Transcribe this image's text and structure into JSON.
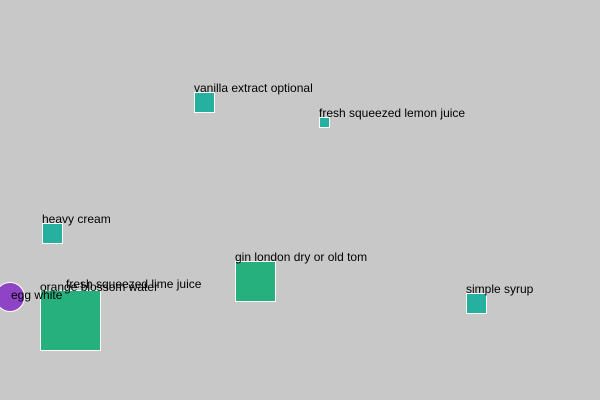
{
  "nodes": [
    {
      "id": "vanilla",
      "label": "vanilla extract optional",
      "shape": "square",
      "color": "#26b0a0"
    },
    {
      "id": "lemon",
      "label": "fresh squeezed lemon juice",
      "shape": "square",
      "color": "#26b0a0"
    },
    {
      "id": "cream",
      "label": "heavy cream",
      "shape": "square",
      "color": "#26b0a0"
    },
    {
      "id": "gin",
      "label": "gin london dry or old tom",
      "shape": "square",
      "color": "#26b07e"
    },
    {
      "id": "syrup",
      "label": "simple syrup",
      "shape": "square",
      "color": "#26b0a0"
    },
    {
      "id": "egg",
      "label": "egg white",
      "shape": "circle",
      "color": "#8e44c4"
    },
    {
      "id": "orange",
      "label": "orange blossom water",
      "shape": "square",
      "color": "#26b07e"
    },
    {
      "id": "lime",
      "label": "fresh squeezed lime juice",
      "shape": "none",
      "color": ""
    }
  ],
  "colors": {
    "background": "#c8c8c8",
    "teal": "#26b0a0",
    "green": "#26b07e",
    "purple": "#8e44c4"
  }
}
